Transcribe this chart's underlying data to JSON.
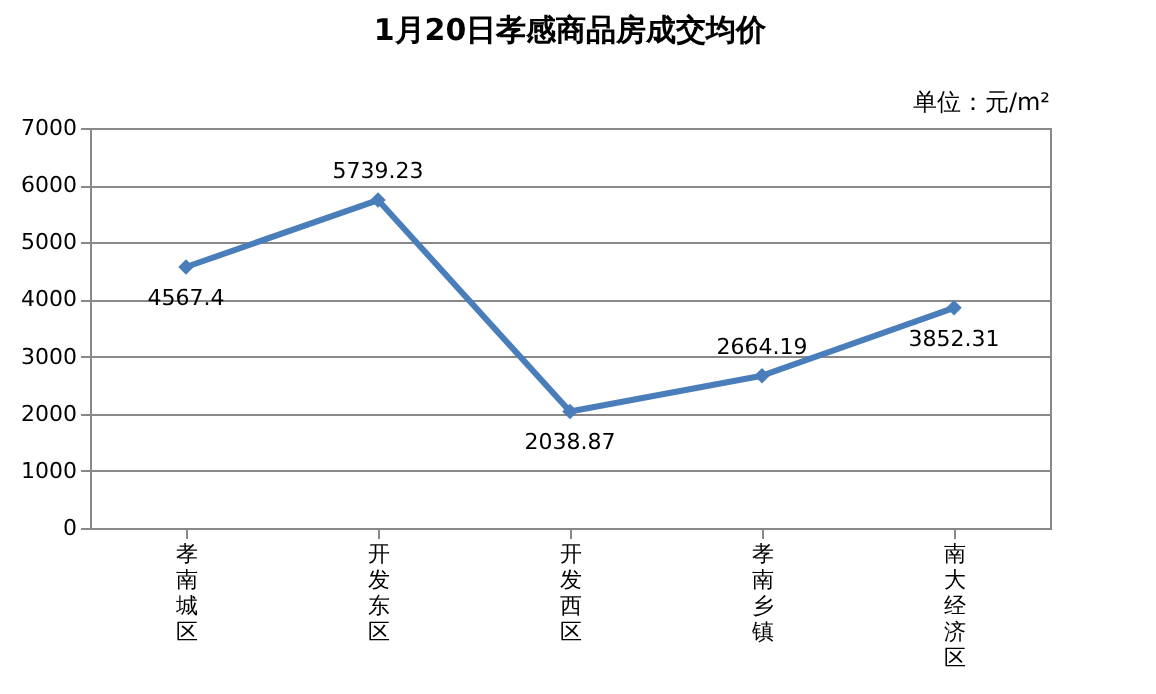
{
  "chart_data": {
    "type": "line",
    "title": "1月20日孝感商品房成交均价",
    "categories": [
      "孝南城区",
      "开发东区",
      "开发西区",
      "孝南乡镇",
      "南大经济区"
    ],
    "series": [
      {
        "color": "#4a7ebb",
        "values": [
          4567.4,
          5739.23,
          2038.87,
          2664.19,
          3852.31
        ]
      }
    ],
    "ylim": [
      0,
      7000
    ],
    "yticks": [
      0,
      1000,
      2000,
      3000,
      4000,
      5000,
      6000,
      7000
    ],
    "grid": "y",
    "marker": "diamond",
    "line_style": "solid",
    "data_labels": true,
    "legend": false,
    "annotations": [
      "单位：元/m²"
    ]
  }
}
